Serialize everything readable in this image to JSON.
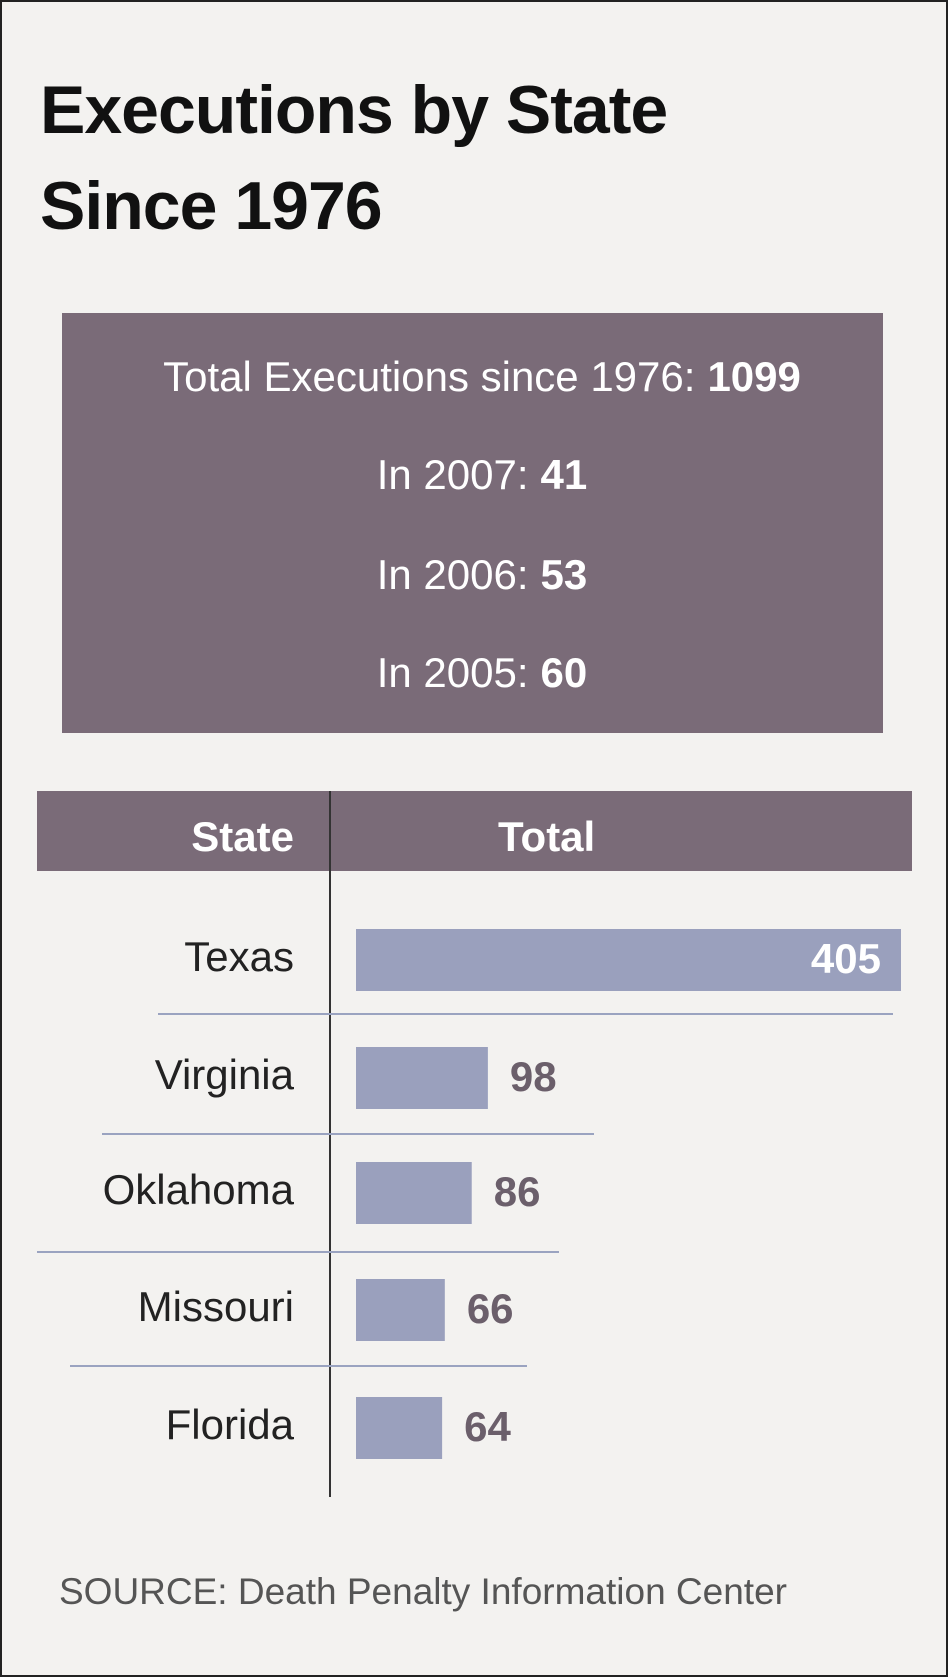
{
  "chart_data": {
    "type": "bar",
    "title": "Executions by State Since 1976",
    "summary": [
      {
        "label": "Total Executions since 1976:",
        "value": 1099
      },
      {
        "label": "In 2007:",
        "value": 41
      },
      {
        "label": "In 2006:",
        "value": 53
      },
      {
        "label": "In 2005:",
        "value": 60
      }
    ],
    "column_headers": [
      "State",
      "Total"
    ],
    "categories": [
      "Texas",
      "Virginia",
      "Oklahoma",
      "Missouri",
      "Florida"
    ],
    "values": [
      405,
      98,
      86,
      66,
      64
    ],
    "color": "#9aa0bd",
    "source": "SOURCE: Death Penalty Information Center"
  }
}
